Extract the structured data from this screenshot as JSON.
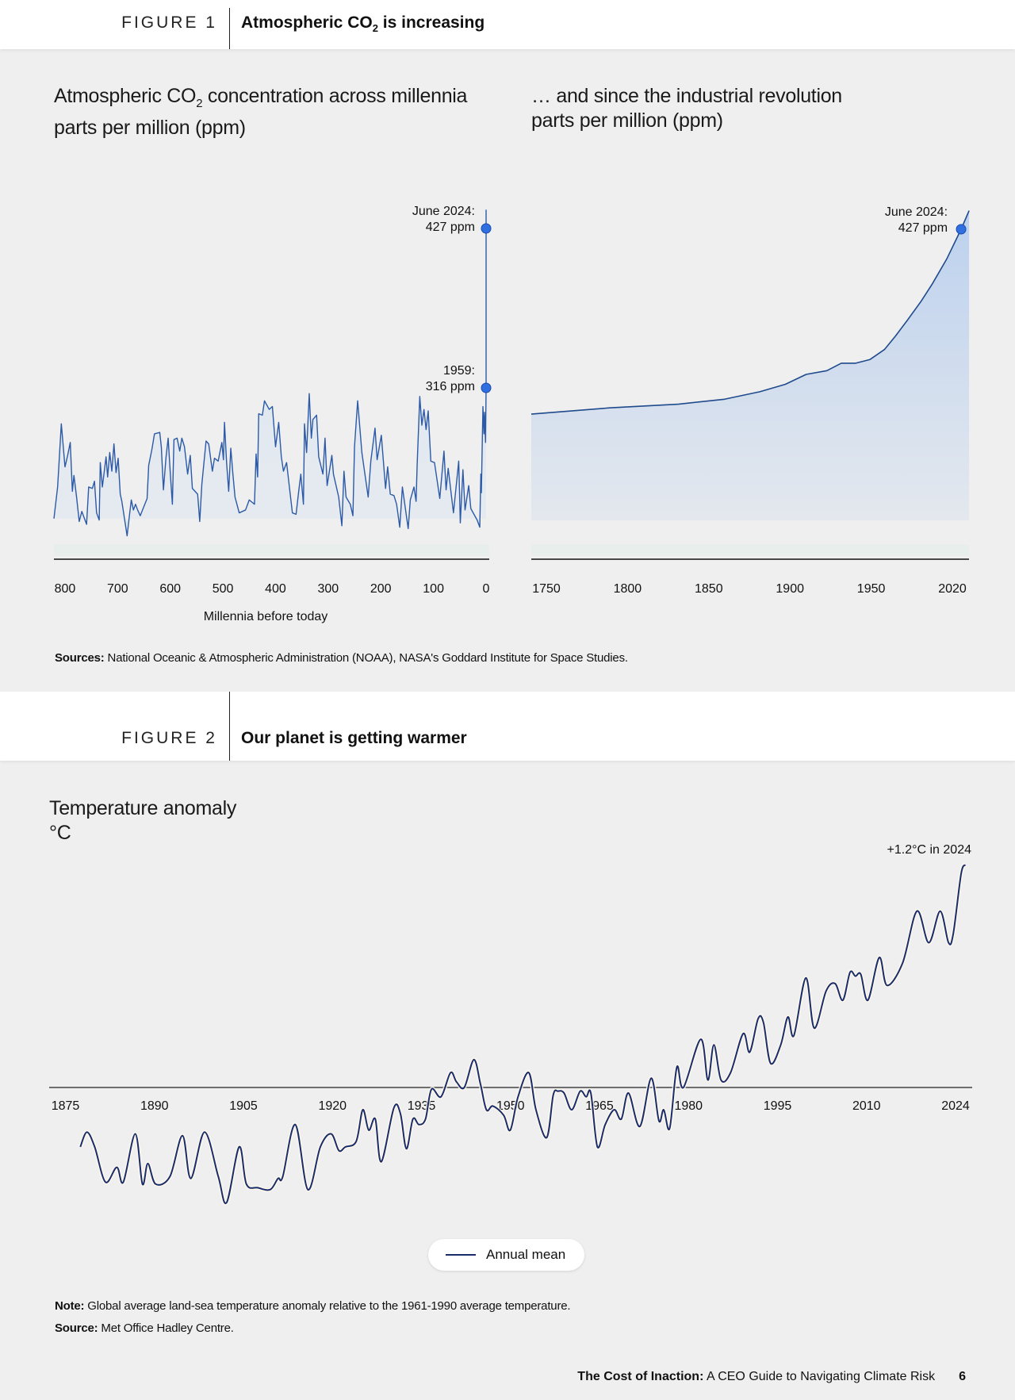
{
  "figure1": {
    "label": "FIGURE 1",
    "title_pre": "Atmospheric CO",
    "title_sub": "2",
    "title_post": " is increasing",
    "sources_label": "Sources:",
    "sources_text": " National Oceanic & Atmospheric Administration (NOAA), NASA's Goddard Institute for Space Studies."
  },
  "figure2": {
    "label": "FIGURE 2",
    "title": "Our planet is getting warmer",
    "note_label": "Note:",
    "note_text": " Global average land-sea temperature anomaly relative to the 1961-1990 average temperature.",
    "source_label": "Source:",
    "source_text": " Met Office Hadley Centre."
  },
  "footer": {
    "title_bold": "The Cost of Inaction:",
    "title_rest": " A CEO Guide to Navigating Climate Risk",
    "page": "6"
  },
  "colors": {
    "background": "#efefef",
    "co2_line": "#2c5aa6",
    "marker": "#2f6fe0",
    "temp_line": "#1a2d6b"
  },
  "chart_data": [
    {
      "type": "area",
      "title_pre": "Atmospheric CO",
      "title_sub": "2",
      "title_post": " concentration across millennia",
      "ylabel": "parts per million (ppm)",
      "xlabel": "Millennia before today",
      "x_ticks": [
        "800",
        "700",
        "600",
        "500",
        "400",
        "300",
        "200",
        "100",
        "0"
      ],
      "x_tick_values": [
        800,
        700,
        600,
        500,
        400,
        300,
        200,
        100,
        0
      ],
      "xlim": [
        821,
        0
      ],
      "annotations": [
        {
          "line1": "June 2024:",
          "line2": "427 ppm",
          "x": 0,
          "y": 427
        },
        {
          "line1": "1959:",
          "line2": "316 ppm",
          "x": 0,
          "y": 316
        }
      ],
      "points": [
        [
          821,
          225
        ],
        [
          814,
          247
        ],
        [
          807,
          291
        ],
        [
          800,
          261
        ],
        [
          795,
          269
        ],
        [
          790,
          278
        ],
        [
          786,
          244
        ],
        [
          783,
          255
        ],
        [
          778,
          240
        ],
        [
          773,
          223
        ],
        [
          768,
          230
        ],
        [
          759,
          221
        ],
        [
          755,
          247
        ],
        [
          748,
          246
        ],
        [
          744,
          251
        ],
        [
          740,
          229
        ],
        [
          735,
          224
        ],
        [
          733,
          264
        ],
        [
          729,
          247
        ],
        [
          722,
          268
        ],
        [
          719,
          254
        ],
        [
          715,
          271
        ],
        [
          711,
          258
        ],
        [
          707,
          277
        ],
        [
          703,
          257
        ],
        [
          699,
          267
        ],
        [
          695,
          242
        ],
        [
          692,
          237
        ],
        [
          682,
          213
        ],
        [
          677,
          229
        ],
        [
          674,
          238
        ],
        [
          670,
          231
        ],
        [
          666,
          235
        ],
        [
          662,
          231
        ],
        [
          657,
          227
        ],
        [
          644,
          239
        ],
        [
          641,
          262
        ],
        [
          635,
          273
        ],
        [
          630,
          284
        ],
        [
          620,
          285
        ],
        [
          617,
          275
        ],
        [
          613,
          245
        ],
        [
          608,
          268
        ],
        [
          604,
          281
        ],
        [
          600,
          257
        ],
        [
          596,
          235
        ],
        [
          593,
          280
        ],
        [
          587,
          281
        ],
        [
          582,
          272
        ],
        [
          578,
          281
        ],
        [
          573,
          275
        ],
        [
          567,
          256
        ],
        [
          562,
          269
        ],
        [
          558,
          246
        ],
        [
          548,
          242
        ],
        [
          544,
          223
        ],
        [
          540,
          249
        ],
        [
          532,
          279
        ],
        [
          527,
          277
        ],
        [
          520,
          258
        ],
        [
          516,
          267
        ],
        [
          509,
          265
        ],
        [
          502,
          278
        ],
        [
          499,
          266
        ],
        [
          497,
          292
        ],
        [
          493,
          264
        ],
        [
          489,
          244
        ],
        [
          485,
          274
        ],
        [
          481,
          256
        ],
        [
          477,
          240
        ],
        [
          469,
          229
        ],
        [
          457,
          231
        ],
        [
          450,
          238
        ],
        [
          440,
          235
        ],
        [
          437,
          270
        ],
        [
          434,
          254
        ],
        [
          432,
          298
        ],
        [
          425,
          297
        ],
        [
          421,
          307
        ],
        [
          412,
          301
        ],
        [
          406,
          303
        ],
        [
          400,
          275
        ],
        [
          394,
          292
        ],
        [
          389,
          268
        ],
        [
          385,
          258
        ],
        [
          379,
          264
        ],
        [
          374,
          248
        ],
        [
          368,
          229
        ],
        [
          361,
          228
        ],
        [
          356,
          244
        ],
        [
          352,
          256
        ],
        [
          347,
          235
        ],
        [
          345,
          291
        ],
        [
          341,
          271
        ],
        [
          336,
          312
        ],
        [
          332,
          281
        ],
        [
          329,
          294
        ],
        [
          322,
          297
        ],
        [
          318,
          268
        ],
        [
          310,
          256
        ],
        [
          306,
          281
        ],
        [
          302,
          248
        ],
        [
          293,
          269
        ],
        [
          290,
          256
        ],
        [
          280,
          240
        ],
        [
          274,
          220
        ],
        [
          270,
          258
        ],
        [
          266,
          240
        ],
        [
          258,
          235
        ],
        [
          253,
          227
        ],
        [
          250,
          275
        ],
        [
          244,
          307
        ],
        [
          240,
          289
        ],
        [
          236,
          271
        ],
        [
          231,
          258
        ],
        [
          224,
          240
        ],
        [
          219,
          265
        ],
        [
          211,
          288
        ],
        [
          207,
          266
        ],
        [
          199,
          283
        ],
        [
          191,
          246
        ],
        [
          187,
          261
        ],
        [
          182,
          242
        ],
        [
          175,
          241
        ],
        [
          170,
          235
        ],
        [
          164,
          219
        ],
        [
          159,
          247
        ],
        [
          148,
          218
        ],
        [
          144,
          238
        ],
        [
          137,
          247
        ],
        [
          133,
          237
        ],
        [
          131,
          262
        ],
        [
          126,
          310
        ],
        [
          122,
          290
        ],
        [
          118,
          301
        ],
        [
          114,
          287
        ],
        [
          110,
          300
        ],
        [
          105,
          265
        ],
        [
          98,
          264
        ],
        [
          88,
          239
        ],
        [
          80,
          272
        ],
        [
          76,
          245
        ],
        [
          72,
          260
        ],
        [
          62,
          229
        ],
        [
          52,
          265
        ],
        [
          49,
          222
        ],
        [
          44,
          259
        ],
        [
          40,
          231
        ],
        [
          33,
          248
        ],
        [
          29,
          232
        ],
        [
          17,
          224
        ],
        [
          12,
          219
        ],
        [
          10,
          256
        ],
        [
          9,
          243
        ],
        [
          6,
          303
        ],
        [
          4,
          284
        ],
        [
          3,
          299
        ],
        [
          1,
          278
        ],
        [
          0,
          316
        ],
        [
          0,
          427
        ],
        [
          0,
          440
        ]
      ]
    },
    {
      "type": "area",
      "title": "… and since the industrial revolution",
      "ylabel": "parts per million (ppm)",
      "x_ticks": [
        "1750",
        "1800",
        "1850",
        "1900",
        "1950",
        "2020"
      ],
      "xlim": [
        1750,
        2024
      ],
      "annotations": [
        {
          "line1": "June 2024:",
          "line2": "427 ppm",
          "y": 427
        }
      ],
      "points": [
        [
          1750,
          278
        ],
        [
          1799,
          283
        ],
        [
          1842,
          286
        ],
        [
          1871,
          290
        ],
        [
          1893,
          296
        ],
        [
          1909,
          302
        ],
        [
          1922,
          310
        ],
        [
          1935,
          313
        ],
        [
          1944,
          319
        ],
        [
          1953,
          319
        ],
        [
          1962,
          322
        ],
        [
          1971,
          330
        ],
        [
          1978,
          341
        ],
        [
          1985,
          353
        ],
        [
          1994,
          369
        ],
        [
          2001,
          383
        ],
        [
          2010,
          403
        ],
        [
          2019,
          427
        ],
        [
          2024,
          442
        ]
      ]
    },
    {
      "type": "line",
      "title": "Temperature anomaly",
      "ylabel": "°C",
      "x_ticks": [
        "1875",
        "1890",
        "1905",
        "1920",
        "1935",
        "1950",
        "1965",
        "1980",
        "1995",
        "2010",
        "2024"
      ],
      "xlim": [
        1875,
        2024
      ],
      "annotation": "+1.2°C in 2024",
      "legend": "Annual mean",
      "legend_position": "bottom-center",
      "series_name": "Annual mean",
      "points": [
        [
          1877.5,
          -0.32
        ],
        [
          1878.6,
          -0.24
        ],
        [
          1879.9,
          -0.32
        ],
        [
          1881.7,
          -0.51
        ],
        [
          1883.6,
          -0.43
        ],
        [
          1884.7,
          -0.51
        ],
        [
          1886.7,
          -0.25
        ],
        [
          1887.9,
          -0.52
        ],
        [
          1888.8,
          -0.41
        ],
        [
          1890.1,
          -0.52
        ],
        [
          1892.5,
          -0.48
        ],
        [
          1894.6,
          -0.26
        ],
        [
          1896.0,
          -0.49
        ],
        [
          1898.3,
          -0.24
        ],
        [
          1900.6,
          -0.48
        ],
        [
          1902.0,
          -0.62
        ],
        [
          1904.1,
          -0.32
        ],
        [
          1905.3,
          -0.52
        ],
        [
          1907.2,
          -0.54
        ],
        [
          1909.3,
          -0.55
        ],
        [
          1910.6,
          -0.49
        ],
        [
          1911.4,
          -0.48
        ],
        [
          1913.5,
          -0.2
        ],
        [
          1915.6,
          -0.55
        ],
        [
          1917.7,
          -0.32
        ],
        [
          1919.5,
          -0.25
        ],
        [
          1920.8,
          -0.34
        ],
        [
          1921.9,
          -0.32
        ],
        [
          1923.7,
          -0.29
        ],
        [
          1924.8,
          -0.12
        ],
        [
          1925.8,
          -0.23
        ],
        [
          1926.9,
          -0.17
        ],
        [
          1927.9,
          -0.4
        ],
        [
          1930.0,
          -0.11
        ],
        [
          1931.1,
          -0.14
        ],
        [
          1932.1,
          -0.33
        ],
        [
          1933.2,
          -0.17
        ],
        [
          1934.2,
          -0.2
        ],
        [
          1935.3,
          -0.17
        ],
        [
          1936.3,
          -0.01
        ],
        [
          1937.9,
          -0.05
        ],
        [
          1939.5,
          0.08
        ],
        [
          1940.5,
          0.03
        ],
        [
          1941.8,
          0.0
        ],
        [
          1943.4,
          0.15
        ],
        [
          1944.5,
          0.02
        ],
        [
          1945.5,
          -0.12
        ],
        [
          1946.6,
          -0.1
        ],
        [
          1948.4,
          -0.15
        ],
        [
          1949.5,
          -0.23
        ],
        [
          1950.8,
          -0.05
        ],
        [
          1952.6,
          0.08
        ],
        [
          1953.8,
          -0.12
        ],
        [
          1955.6,
          -0.27
        ],
        [
          1956.7,
          -0.04
        ],
        [
          1957.5,
          -0.02
        ],
        [
          1958.5,
          -0.03
        ],
        [
          1959.8,
          -0.12
        ],
        [
          1961.2,
          -0.02
        ],
        [
          1962.2,
          -0.05
        ],
        [
          1963.0,
          -0.03
        ],
        [
          1964.1,
          -0.32
        ],
        [
          1965.4,
          -0.2
        ],
        [
          1966.9,
          -0.12
        ],
        [
          1968.1,
          -0.17
        ],
        [
          1969.3,
          -0.03
        ],
        [
          1971.2,
          -0.21
        ],
        [
          1973.1,
          0.05
        ],
        [
          1974.4,
          -0.18
        ],
        [
          1975.2,
          -0.12
        ],
        [
          1976.2,
          -0.22
        ],
        [
          1977.4,
          0.11
        ],
        [
          1978.5,
          0.0
        ],
        [
          1981.4,
          0.26
        ],
        [
          1982.6,
          0.04
        ],
        [
          1983.6,
          0.23
        ],
        [
          1984.8,
          0.04
        ],
        [
          1986.4,
          0.08
        ],
        [
          1988.5,
          0.29
        ],
        [
          1989.6,
          0.19
        ],
        [
          1991.0,
          0.37
        ],
        [
          1991.9,
          0.35
        ],
        [
          1993.1,
          0.13
        ],
        [
          1994.8,
          0.23
        ],
        [
          1996.0,
          0.38
        ],
        [
          1997.0,
          0.28
        ],
        [
          1999.0,
          0.59
        ],
        [
          2000.4,
          0.32
        ],
        [
          2002.4,
          0.52
        ],
        [
          2003.9,
          0.56
        ],
        [
          2005.2,
          0.47
        ],
        [
          2006.4,
          0.62
        ],
        [
          2007.3,
          0.6
        ],
        [
          2008.2,
          0.61
        ],
        [
          2009.4,
          0.47
        ],
        [
          2011.3,
          0.7
        ],
        [
          2012.6,
          0.55
        ],
        [
          2015.2,
          0.67
        ],
        [
          2017.6,
          0.95
        ],
        [
          2019.6,
          0.78
        ],
        [
          2021.5,
          0.95
        ],
        [
          2022.9,
          0.78
        ],
        [
          2023.7,
          0.83
        ],
        [
          2025.0,
          1.15
        ],
        [
          2025.7,
          1.2
        ]
      ]
    }
  ]
}
